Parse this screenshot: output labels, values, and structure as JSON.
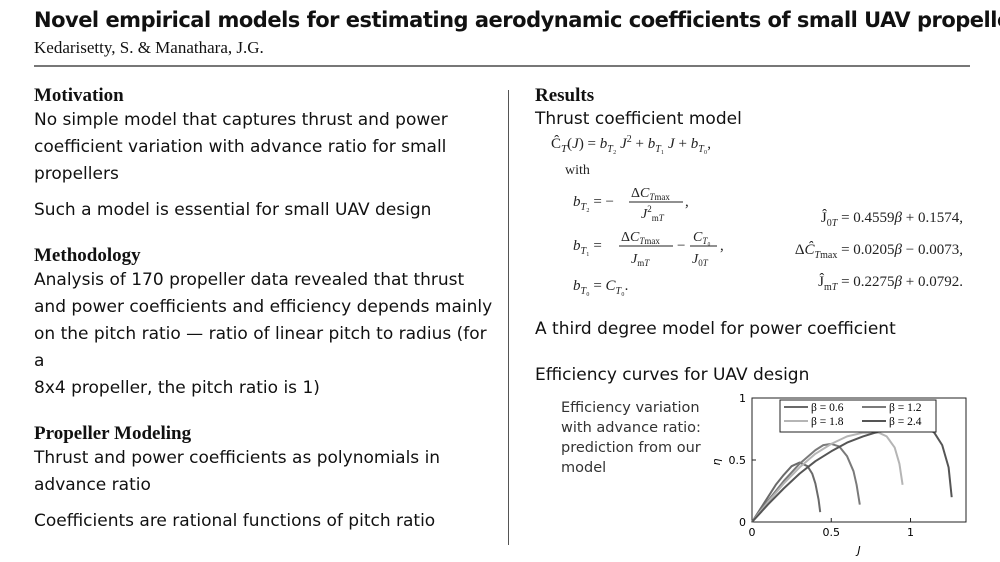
{
  "header": {
    "title": "Novel empirical models for estimating aerodynamic coefficients of small UAV propellers",
    "authors": "Kedarisetty, S. & Manathara, J.G."
  },
  "motivation": {
    "heading": "Motivation",
    "p1": [
      "No simple model that captures thrust and power",
      "coefficient variation with advance ratio for small",
      "propellers"
    ],
    "p2": "Such a model is essential for small UAV design"
  },
  "methodology": {
    "heading": "Methodology",
    "p1": [
      "Analysis of 170 propeller data revealed that thrust",
      "and power coefficients and efficiency depends mainly",
      "on the pitch ratio — ratio of linear pitch to radius (for a",
      "8x4 propeller, the pitch ratio is 1)"
    ]
  },
  "modeling": {
    "heading": "Propeller Modeling",
    "p1": [
      "Thrust and power coefficients as polynomials in",
      "advance ratio"
    ],
    "p2": "Coefficients are rational functions of pitch ratio"
  },
  "results": {
    "heading": "Results",
    "thrust_label": "Thrust coefficient model",
    "with_label": "with",
    "equations": {
      "eq_ct": "Ĉ_T(J) = b_T2 J² + b_T1 J + b_T0",
      "eq_bt2": "b_T2 = −ΔC_Tmax / J²_mT",
      "eq_bt1": "b_T1 = ΔC_Tmax / J_mT − C_T0 / J_0T",
      "eq_bt0": "b_T0 = C_T0",
      "eq_j0t": "Ĵ_0T = 0.4559β + 0.1574",
      "eq_dct": "ΔĈ_Tmax = 0.0205β − 0.0073",
      "eq_jmt": "Ĵ_mT = 0.2275β + 0.0792"
    },
    "power_label": "A third degree model for power coefficient",
    "efficiency_label": "Efficiency curves for UAV design",
    "chart_caption": [
      "Efficiency variation",
      "with advance ratio:",
      "prediction from our",
      "model"
    ]
  },
  "chart_data": {
    "type": "line",
    "xlabel": "J",
    "ylabel": "η",
    "xlim": [
      0,
      1.35
    ],
    "ylim": [
      0,
      1.0
    ],
    "xticks": [
      "0",
      "0.5",
      "1"
    ],
    "yticks": [
      "0",
      "0.5",
      "1"
    ],
    "legend_position": "top-right",
    "grid": false,
    "series": [
      {
        "name": "β = 0.6",
        "color": "#6a6a6a",
        "x": [
          0,
          0.05,
          0.1,
          0.15,
          0.2,
          0.25,
          0.3,
          0.35,
          0.38,
          0.4,
          0.42,
          0.43
        ],
        "y": [
          0,
          0.1,
          0.2,
          0.3,
          0.38,
          0.45,
          0.48,
          0.45,
          0.39,
          0.31,
          0.18,
          0.08
        ]
      },
      {
        "name": "β = 1.2",
        "color": "#7a7a7a",
        "x": [
          0,
          0.1,
          0.2,
          0.3,
          0.4,
          0.45,
          0.5,
          0.55,
          0.6,
          0.64,
          0.66,
          0.68
        ],
        "y": [
          0,
          0.17,
          0.33,
          0.47,
          0.58,
          0.62,
          0.63,
          0.61,
          0.53,
          0.41,
          0.3,
          0.14
        ]
      },
      {
        "name": "β = 1.8",
        "color": "#b5b5b5",
        "x": [
          0,
          0.1,
          0.2,
          0.3,
          0.4,
          0.5,
          0.6,
          0.7,
          0.8,
          0.85,
          0.9,
          0.93,
          0.95
        ],
        "y": [
          0,
          0.16,
          0.31,
          0.44,
          0.55,
          0.63,
          0.69,
          0.72,
          0.72,
          0.69,
          0.6,
          0.47,
          0.3
        ]
      },
      {
        "name": "β = 2.4",
        "color": "#555555",
        "x": [
          0,
          0.1,
          0.2,
          0.3,
          0.4,
          0.5,
          0.6,
          0.7,
          0.8,
          0.9,
          1.0,
          1.05,
          1.1,
          1.15,
          1.2,
          1.24,
          1.26
        ],
        "y": [
          0,
          0.14,
          0.27,
          0.39,
          0.49,
          0.57,
          0.64,
          0.69,
          0.73,
          0.75,
          0.77,
          0.77,
          0.76,
          0.72,
          0.62,
          0.44,
          0.2
        ]
      }
    ]
  }
}
